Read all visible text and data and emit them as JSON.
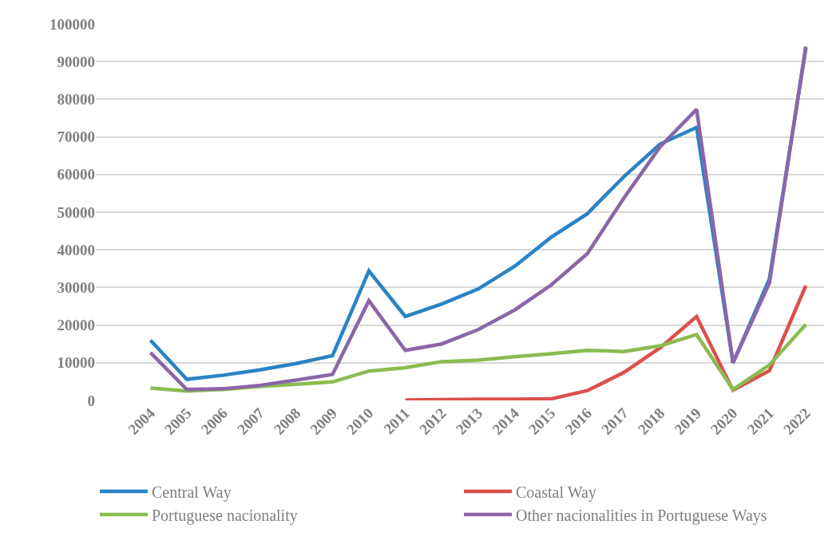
{
  "chart_data": {
    "type": "line",
    "categories": [
      "2004",
      "2005",
      "2006",
      "2007",
      "2008",
      "2009",
      "2010",
      "2011",
      "2012",
      "2013",
      "2014",
      "2015",
      "2016",
      "2017",
      "2018",
      "2019",
      "2020",
      "2021",
      "2022"
    ],
    "series": [
      {
        "name": "Central Way",
        "color": "#2a83c4",
        "values": [
          16000,
          5600,
          6700,
          8100,
          9800,
          11900,
          34400,
          22300,
          25600,
          29600,
          35600,
          43300,
          49600,
          59400,
          68100,
          72500,
          10000,
          32300,
          93500
        ]
      },
      {
        "name": "Coastal Way",
        "color": "#dc504c",
        "values": [
          null,
          null,
          null,
          null,
          null,
          null,
          null,
          100,
          200,
          300,
          300,
          400,
          2600,
          7400,
          14000,
          22300,
          2700,
          7900,
          30500
        ]
      },
      {
        "name": "Portuguese nacionality",
        "color": "#8cbb50",
        "values": [
          3300,
          2500,
          2900,
          3700,
          4300,
          4900,
          7800,
          8700,
          10300,
          10700,
          11600,
          12400,
          13300,
          13000,
          14500,
          17500,
          2900,
          9400,
          20200
        ]
      },
      {
        "name": "Other nacionalities in Portuguese Ways",
        "color": "#8a66a8",
        "values": [
          12700,
          2900,
          3100,
          4000,
          5400,
          6900,
          26500,
          13300,
          15000,
          18800,
          24000,
          30600,
          39000,
          53700,
          67400,
          77300,
          10000,
          31200,
          94000
        ]
      }
    ],
    "ylim": [
      0,
      100000
    ],
    "yticks": [
      0,
      10000,
      20000,
      30000,
      40000,
      50000,
      60000,
      70000,
      80000,
      90000,
      100000
    ],
    "grid": "y",
    "legend": "bottom",
    "marker": "none",
    "line_style": "solid"
  }
}
